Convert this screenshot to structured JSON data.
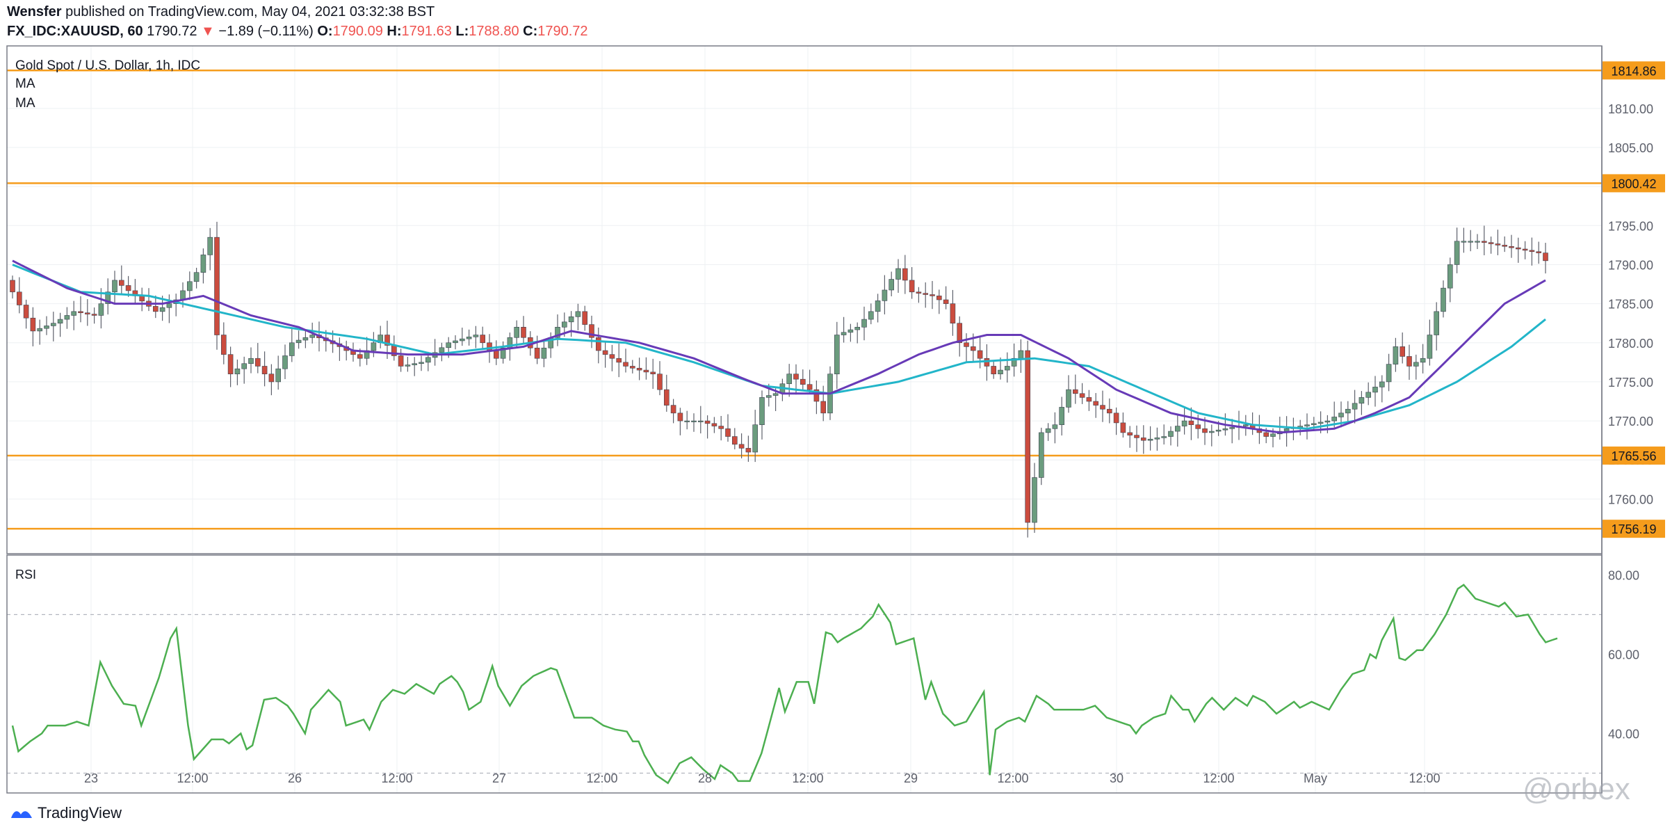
{
  "header": {
    "author": "Wensfer",
    "published_text": "published on TradingView.com, May 04, 2021 03:32:38 BST",
    "symbol": "FX_IDC:XAUUSD, 60",
    "last": "1790.72",
    "change_arrow": "▼",
    "change": "−1.89 (−0.11%)",
    "o_label": "O:",
    "o": "1790.09",
    "h_label": "H:",
    "h": "1791.63",
    "l_label": "L:",
    "l": "1788.80",
    "c_label": "C:",
    "c": "1790.72"
  },
  "pane_labels": {
    "title": "Gold Spot / U.S. Dollar, 1h, IDC",
    "ma1": "MA",
    "ma2": "MA",
    "rsi": "RSI"
  },
  "footer": {
    "brand": "TradingView"
  },
  "watermark": "@orbex",
  "colors": {
    "up": "#6b9c7e",
    "down": "#cb4c3e",
    "wick": "#5d606b",
    "ma_fast": "#673ab7",
    "ma_slow": "#22b5c9",
    "hline": "#f59c1c",
    "rsi": "#4caf50",
    "grid": "#eef0f3",
    "axis_text": "#5d606b"
  },
  "chart_data": {
    "type": "candlestick",
    "title": "Gold Spot / U.S. Dollar, 1h, IDC",
    "price_axis": {
      "ylim": [
        1753,
        1818
      ],
      "ticks": [
        1760,
        1765,
        1770,
        1775,
        1780,
        1785,
        1790,
        1795,
        1800,
        1805,
        1810
      ]
    },
    "x_ticks": [
      "23",
      "12:00",
      "26",
      "12:00",
      "27",
      "12:00",
      "28",
      "12:00",
      "29",
      "12:00",
      "30",
      "12:00",
      "May",
      "12:00"
    ],
    "horizontal_levels": [
      "1814.86",
      "1800.42",
      "1765.56",
      "1756.19"
    ],
    "close_anchors": [
      [
        0,
        1786.5
      ],
      [
        3,
        1781.5
      ],
      [
        6,
        1782.5
      ],
      [
        9,
        1784
      ],
      [
        12,
        1783.5
      ],
      [
        15,
        1788
      ],
      [
        18,
        1786
      ],
      [
        21,
        1784
      ],
      [
        24,
        1785.5
      ],
      [
        27,
        1789
      ],
      [
        29,
        1793.5
      ],
      [
        30,
        1781
      ],
      [
        32,
        1776
      ],
      [
        35,
        1778
      ],
      [
        38,
        1775
      ],
      [
        41,
        1780
      ],
      [
        44,
        1781
      ],
      [
        48,
        1779.5
      ],
      [
        51,
        1778
      ],
      [
        54,
        1781
      ],
      [
        57,
        1777
      ],
      [
        60,
        1777.5
      ],
      [
        64,
        1780
      ],
      [
        68,
        1781
      ],
      [
        71,
        1778
      ],
      [
        74,
        1782
      ],
      [
        77,
        1778
      ],
      [
        80,
        1782
      ],
      [
        83,
        1784
      ],
      [
        86,
        1779
      ],
      [
        90,
        1777
      ],
      [
        94,
        1776
      ],
      [
        96,
        1772
      ],
      [
        98,
        1770
      ],
      [
        101,
        1770
      ],
      [
        104,
        1769
      ],
      [
        106,
        1767
      ],
      [
        108,
        1766
      ],
      [
        110,
        1773
      ],
      [
        112,
        1773.5
      ],
      [
        114,
        1776
      ],
      [
        117,
        1774
      ],
      [
        119,
        1771
      ],
      [
        121,
        1781
      ],
      [
        124,
        1782
      ],
      [
        126,
        1784
      ],
      [
        130,
        1789.5
      ],
      [
        132,
        1786.5
      ],
      [
        135,
        1786
      ],
      [
        137,
        1785
      ],
      [
        139,
        1780
      ],
      [
        141,
        1779
      ],
      [
        144,
        1776
      ],
      [
        146,
        1777
      ],
      [
        148,
        1779
      ],
      [
        149,
        1757
      ],
      [
        151,
        1768.5
      ],
      [
        153,
        1769.5
      ],
      [
        155,
        1774
      ],
      [
        158,
        1772.5
      ],
      [
        161,
        1771
      ],
      [
        163,
        1768.5
      ],
      [
        166,
        1767.5
      ],
      [
        169,
        1768
      ],
      [
        172,
        1770
      ],
      [
        175,
        1768.5
      ],
      [
        178,
        1769
      ],
      [
        181,
        1769.5
      ],
      [
        184,
        1768
      ],
      [
        187,
        1769
      ],
      [
        190,
        1769.5
      ],
      [
        193,
        1770
      ],
      [
        196,
        1771.5
      ],
      [
        198,
        1773
      ],
      [
        201,
        1775
      ],
      [
        203,
        1779.5
      ],
      [
        205,
        1777
      ],
      [
        207,
        1778
      ],
      [
        209,
        1784
      ],
      [
        211,
        1790
      ],
      [
        212,
        1793
      ],
      [
        215,
        1793
      ],
      [
        218,
        1792.5
      ],
      [
        221,
        1792
      ],
      [
        224,
        1791.5
      ],
      [
        225,
        1790.5
      ]
    ],
    "ma_fast_anchors": [
      [
        0,
        1790.5
      ],
      [
        8,
        1787
      ],
      [
        15,
        1785
      ],
      [
        22,
        1785
      ],
      [
        28,
        1786
      ],
      [
        35,
        1783.5
      ],
      [
        42,
        1782
      ],
      [
        50,
        1779
      ],
      [
        58,
        1778.5
      ],
      [
        66,
        1778.5
      ],
      [
        75,
        1779.5
      ],
      [
        82,
        1781.5
      ],
      [
        92,
        1780
      ],
      [
        100,
        1778
      ],
      [
        107,
        1775.5
      ],
      [
        113,
        1773.5
      ],
      [
        120,
        1773.5
      ],
      [
        127,
        1776
      ],
      [
        133,
        1778.5
      ],
      [
        138,
        1780
      ],
      [
        143,
        1781
      ],
      [
        148,
        1781
      ],
      [
        155,
        1778
      ],
      [
        162,
        1774
      ],
      [
        170,
        1771
      ],
      [
        178,
        1769.5
      ],
      [
        186,
        1768.5
      ],
      [
        194,
        1769
      ],
      [
        200,
        1771
      ],
      [
        205,
        1773
      ],
      [
        212,
        1779
      ],
      [
        219,
        1785
      ],
      [
        225,
        1788
      ]
    ],
    "ma_slow_anchors": [
      [
        0,
        1790
      ],
      [
        10,
        1786.5
      ],
      [
        20,
        1786
      ],
      [
        30,
        1784
      ],
      [
        40,
        1782
      ],
      [
        52,
        1780.5
      ],
      [
        62,
        1778.5
      ],
      [
        72,
        1779.5
      ],
      [
        80,
        1780.5
      ],
      [
        90,
        1780
      ],
      [
        100,
        1777.5
      ],
      [
        110,
        1774.5
      ],
      [
        120,
        1773.5
      ],
      [
        130,
        1775
      ],
      [
        140,
        1777.5
      ],
      [
        150,
        1778
      ],
      [
        158,
        1777
      ],
      [
        166,
        1774
      ],
      [
        174,
        1771
      ],
      [
        182,
        1769.5
      ],
      [
        190,
        1769
      ],
      [
        197,
        1770
      ],
      [
        205,
        1772
      ],
      [
        212,
        1775
      ],
      [
        220,
        1779.5
      ],
      [
        225,
        1783
      ]
    ],
    "rsi": {
      "label": "RSI",
      "ylim": [
        25,
        85
      ],
      "ticks": [
        40,
        60,
        80
      ],
      "bands": [
        30,
        70
      ],
      "anchors": [
        [
          0,
          42
        ],
        [
          1,
          35.5
        ],
        [
          3,
          38
        ],
        [
          5,
          40
        ],
        [
          6,
          42
        ],
        [
          9,
          42
        ],
        [
          11,
          43
        ],
        [
          13,
          42
        ],
        [
          15,
          58
        ],
        [
          17,
          52
        ],
        [
          19,
          47.5
        ],
        [
          21,
          47
        ],
        [
          22,
          42
        ],
        [
          25,
          54
        ],
        [
          27,
          64
        ],
        [
          28,
          66.5
        ],
        [
          30,
          42
        ],
        [
          31,
          33.5
        ],
        [
          34,
          38.5
        ],
        [
          36,
          38.5
        ],
        [
          37,
          37.5
        ],
        [
          39,
          40
        ],
        [
          40,
          36
        ],
        [
          41,
          37
        ],
        [
          43,
          48.5
        ],
        [
          45,
          49
        ],
        [
          47,
          47
        ],
        [
          48,
          45
        ],
        [
          50,
          40
        ],
        [
          51,
          46
        ],
        [
          54,
          51
        ],
        [
          56,
          48
        ],
        [
          57,
          42
        ],
        [
          60,
          43.5
        ],
        [
          61,
          41
        ],
        [
          63,
          48
        ],
        [
          65,
          51
        ],
        [
          67,
          50
        ],
        [
          69,
          52.5
        ],
        [
          72,
          50
        ],
        [
          73,
          52.5
        ],
        [
          75,
          54.5
        ],
        [
          76,
          53
        ],
        [
          77,
          50.5
        ],
        [
          78,
          46
        ],
        [
          80,
          48
        ],
        [
          82,
          57
        ],
        [
          83,
          52
        ],
        [
          85,
          47
        ],
        [
          87,
          52
        ],
        [
          89,
          54.5
        ],
        [
          92,
          56.5
        ],
        [
          93,
          56
        ],
        [
          96,
          44
        ],
        [
          99,
          44
        ],
        [
          101,
          42
        ],
        [
          103,
          41
        ],
        [
          105,
          40.5
        ],
        [
          106,
          38
        ],
        [
          107,
          38
        ],
        [
          108,
          34.5
        ],
        [
          110,
          29.5
        ],
        [
          112,
          27.5
        ],
        [
          114,
          32.5
        ],
        [
          116,
          34
        ],
        [
          118,
          31
        ],
        [
          120,
          28.5
        ],
        [
          121,
          32
        ],
        [
          123,
          30
        ],
        [
          124,
          28
        ],
        [
          126,
          28
        ],
        [
          128,
          35
        ],
        [
          131,
          51.5
        ],
        [
          132,
          45.5
        ],
        [
          134,
          53
        ],
        [
          136,
          53
        ],
        [
          137,
          47.5
        ],
        [
          139,
          65.5
        ],
        [
          140,
          65
        ],
        [
          141,
          63
        ],
        [
          142,
          64
        ],
        [
          145,
          66.5
        ],
        [
          147,
          69.5
        ],
        [
          148,
          72.5
        ],
        [
          150,
          68
        ],
        [
          151,
          62.5
        ],
        [
          154,
          64
        ],
        [
          156,
          48.5
        ],
        [
          157,
          53
        ],
        [
          159,
          45
        ],
        [
          161,
          42
        ],
        [
          163,
          43
        ],
        [
          165,
          48
        ],
        [
          166,
          50.5
        ],
        [
          167,
          29.5
        ],
        [
          168,
          41
        ],
        [
          170,
          43
        ],
        [
          172,
          44
        ],
        [
          173,
          43
        ],
        [
          175,
          49.5
        ],
        [
          177,
          47.5
        ],
        [
          178,
          46
        ],
        [
          181,
          46
        ],
        [
          183,
          46
        ],
        [
          185,
          47
        ],
        [
          187,
          44
        ],
        [
          191,
          42
        ],
        [
          192,
          40
        ],
        [
          193,
          42
        ],
        [
          195,
          44
        ],
        [
          197,
          45
        ],
        [
          198,
          49.5
        ],
        [
          200,
          46
        ],
        [
          201,
          46
        ],
        [
          202,
          43
        ],
        [
          204,
          47.5
        ],
        [
          205,
          49
        ],
        [
          207,
          46
        ],
        [
          209,
          49
        ],
        [
          211,
          47
        ],
        [
          212,
          49.5
        ],
        [
          214,
          48
        ],
        [
          216,
          45
        ],
        [
          217,
          46
        ],
        [
          219,
          48
        ],
        [
          220,
          46.5
        ],
        [
          222,
          48
        ],
        [
          225,
          46
        ],
        [
          227,
          51
        ],
        [
          229,
          55
        ],
        [
          231,
          56
        ],
        [
          232,
          60
        ],
        [
          233,
          59
        ],
        [
          234,
          63.5
        ],
        [
          236,
          69
        ],
        [
          237,
          59
        ],
        [
          238,
          58.5
        ],
        [
          240,
          61
        ],
        [
          241,
          61
        ],
        [
          243,
          65
        ],
        [
          245,
          70
        ],
        [
          247,
          76.5
        ],
        [
          248,
          77.5
        ],
        [
          250,
          74
        ],
        [
          252,
          73
        ],
        [
          254,
          72
        ],
        [
          255,
          73
        ],
        [
          257,
          69.5
        ],
        [
          259,
          70
        ],
        [
          261,
          65
        ],
        [
          262,
          63
        ],
        [
          264,
          64
        ]
      ]
    }
  }
}
